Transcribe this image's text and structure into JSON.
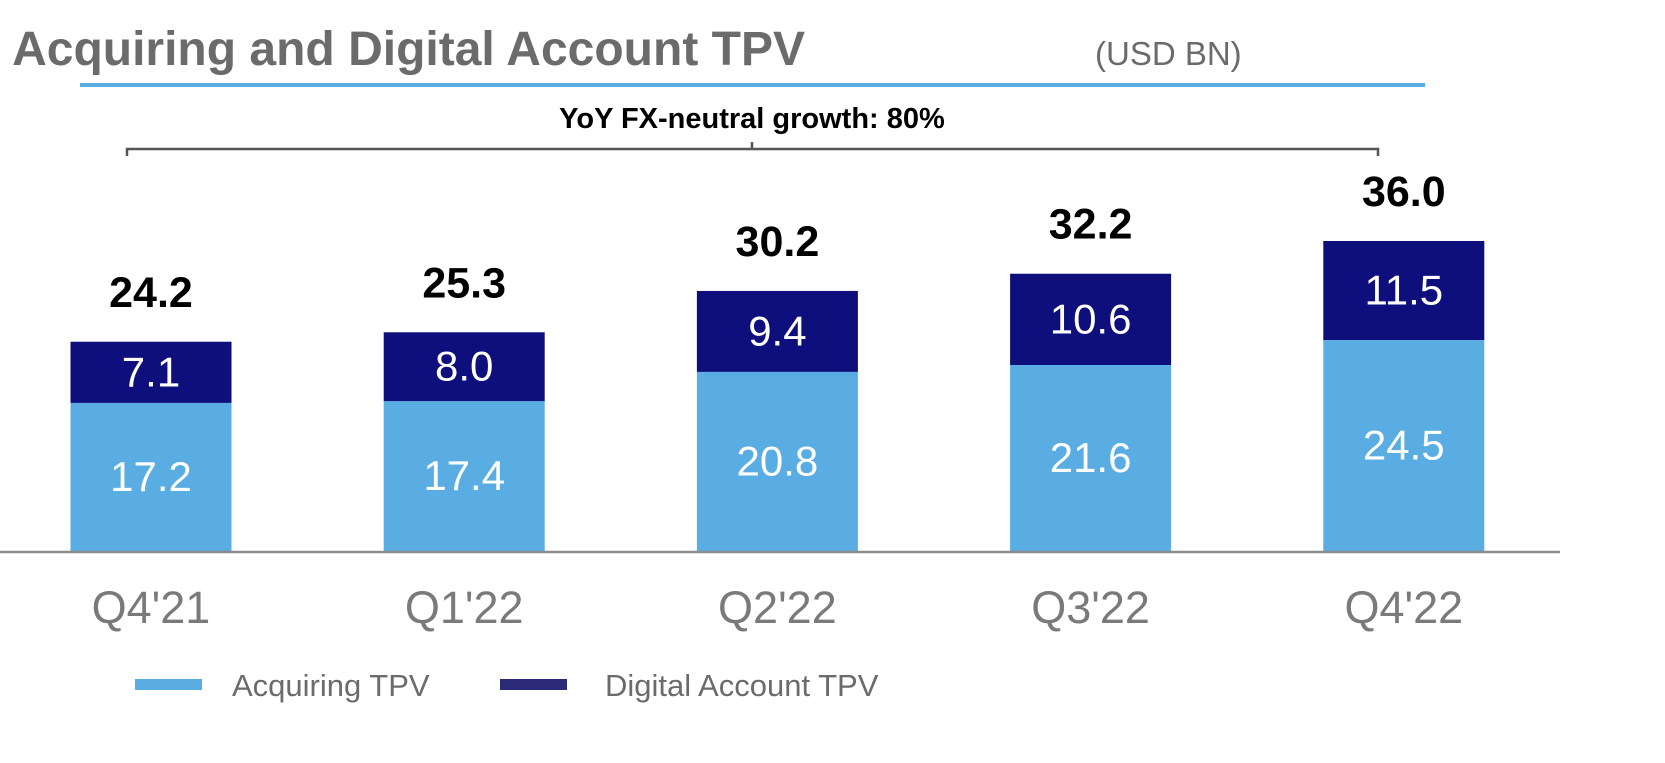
{
  "chart_data": {
    "type": "bar",
    "stacked": true,
    "title": "Acquiring and Digital Account TPV",
    "title_unit": "(USD BN)",
    "annotation": "YoY FX-neutral growth: 80%",
    "categories": [
      "Q4'21",
      "Q1'22",
      "Q2'22",
      "Q3'22",
      "Q4'22"
    ],
    "series": [
      {
        "name": "Acquiring TPV",
        "values": [
          17.2,
          17.4,
          20.8,
          21.6,
          24.5
        ],
        "color": "#5aade3"
      },
      {
        "name": "Digital Account TPV",
        "values": [
          7.1,
          8.0,
          9.4,
          10.6,
          11.5
        ],
        "color": "#0e0e7c"
      }
    ],
    "totals": [
      24.2,
      25.3,
      30.2,
      32.2,
      36.0
    ],
    "ylim": [
      0,
      36.0
    ],
    "grid": false,
    "legend_position": "bottom-left",
    "accent_color": "#5aade3"
  }
}
